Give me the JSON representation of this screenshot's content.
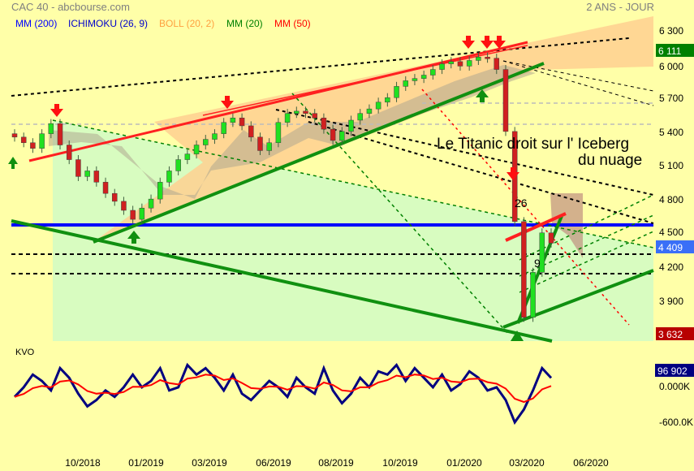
{
  "header": {
    "title": "CAC 40 - abcbourse.com",
    "period": "2 ANS - JOUR"
  },
  "legend": [
    {
      "label": "MM (200)",
      "color": "#0000ff"
    },
    {
      "label": "ICHIMOKU (26, 9)",
      "color": "#0000cc"
    },
    {
      "label": "BOLL (20, 2)",
      "color": "#ffa040"
    },
    {
      "label": "MM (20)",
      "color": "#008000"
    },
    {
      "label": "MM (50)",
      "color": "#ff0000"
    }
  ],
  "annotation": {
    "line1": "Le Titanic droit sur l' Iceberg",
    "line2": "du nuage",
    "mark_a": "26",
    "mark_b": "9"
  },
  "chart_data": [
    {
      "type": "candlestick",
      "title": "CAC 40",
      "y_ticks": [
        6300,
        6000,
        5700,
        5400,
        5100,
        4800,
        4500,
        4200,
        3900
      ],
      "y_tick_labels": [
        "6 300",
        "6 000",
        "5 700",
        "5 400",
        "5 100",
        "4 800",
        "4 500",
        "4 200",
        "3 900"
      ],
      "ylim": [
        3630,
        6400
      ],
      "x_tick_labels": [
        "10/2018",
        "01/2019",
        "03/2019",
        "06/2019",
        "08/2019",
        "10/2019",
        "01/2020",
        "03/2020",
        "06/2020"
      ],
      "closes": [
        5350,
        5300,
        5250,
        5380,
        5470,
        5280,
        5150,
        5000,
        5050,
        4950,
        4850,
        4780,
        4700,
        4620,
        4720,
        4800,
        4950,
        5050,
        5150,
        5200,
        5280,
        5330,
        5380,
        5480,
        5520,
        5450,
        5350,
        5230,
        5300,
        5480,
        5560,
        5580,
        5560,
        5520,
        5420,
        5320,
        5400,
        5500,
        5560,
        5600,
        5660,
        5700,
        5800,
        5850,
        5870,
        5900,
        5950,
        6000,
        6020,
        5980,
        6030,
        6060,
        6050,
        5950,
        5400,
        4600,
        3750,
        4150,
        4500,
        4409
      ],
      "ma200_level": 4570,
      "value_labels": [
        {
          "text": "6 111",
          "value": 6111,
          "color": "#008000"
        },
        {
          "text": "4 409",
          "value": 4409,
          "color": "#3a6ff7"
        },
        {
          "text": "3 632",
          "value": 3632,
          "color": "#b80000"
        }
      ]
    },
    {
      "type": "line",
      "title": "KVO",
      "y_tick_labels": [
        "0.000K",
        "-600.0K"
      ],
      "y_ticks": [
        0,
        -600
      ],
      "series": [
        {
          "color": "#000080",
          "values": [
            -200,
            -50,
            150,
            50,
            -100,
            250,
            100,
            -150,
            -350,
            -250,
            -100,
            -200,
            -50,
            150,
            -50,
            50,
            250,
            -100,
            -50,
            300,
            150,
            250,
            100,
            -100,
            150,
            -150,
            -250,
            -100,
            50,
            -50,
            -200,
            100,
            -50,
            -150,
            250,
            -100,
            -300,
            -150,
            100,
            -50,
            200,
            150,
            300,
            50,
            250,
            100,
            -50,
            150,
            -100,
            0,
            200,
            100,
            -100,
            -50,
            -250,
            -600,
            -400,
            -100,
            250,
            97
          ]
        },
        {
          "color": "#ff0000",
          "values": "signal"
        }
      ],
      "value_label": {
        "text": "96 902",
        "color": "#000080"
      }
    }
  ]
}
